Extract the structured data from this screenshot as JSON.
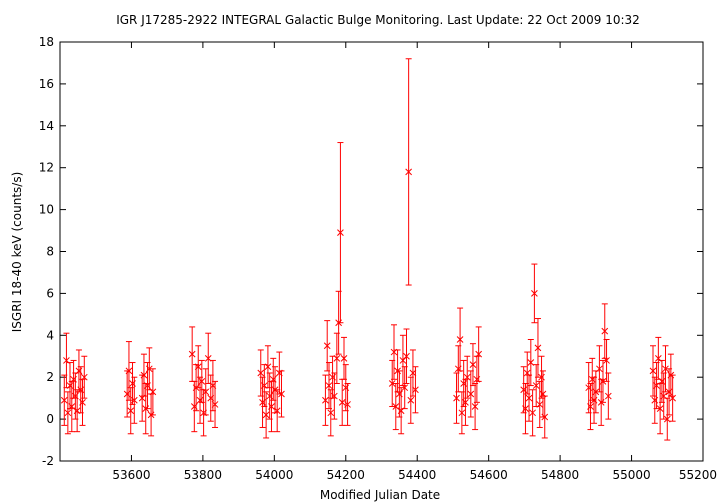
{
  "chart_data": {
    "type": "scatter",
    "title": "IGR J17285-2922   INTEGRAL Galactic Bulge Monitoring.  Last Update: 22 Oct 2009 10:32",
    "xlabel": "Modified Julian Date",
    "ylabel": "ISGRI 18-40 keV (counts/s)",
    "xlim": [
      53400,
      55200
    ],
    "ylim": [
      -2,
      18
    ],
    "xticks": [
      53600,
      53800,
      54000,
      54200,
      54400,
      54600,
      54800,
      55000,
      55200
    ],
    "yticks": [
      -2,
      0,
      2,
      4,
      6,
      8,
      10,
      12,
      14,
      16,
      18
    ],
    "grid": false,
    "legend": "none",
    "marker": "x with error bars",
    "color": "#ff0000",
    "series": [
      {
        "values": [
          {
            "x": 53412,
            "y": 0.9,
            "err": 1.2
          },
          {
            "x": 53418,
            "y": 2.8,
            "err": 1.3
          },
          {
            "x": 53422,
            "y": 0.3,
            "err": 1.0
          },
          {
            "x": 53428,
            "y": 1.6,
            "err": 1.1
          },
          {
            "x": 53433,
            "y": 0.6,
            "err": 1.2
          },
          {
            "x": 53438,
            "y": 1.9,
            "err": 0.9
          },
          {
            "x": 53443,
            "y": 1.1,
            "err": 1.1
          },
          {
            "x": 53448,
            "y": 0.4,
            "err": 1.0
          },
          {
            "x": 53453,
            "y": 2.3,
            "err": 1.0
          },
          {
            "x": 53458,
            "y": 1.4,
            "err": 1.1
          },
          {
            "x": 53463,
            "y": 0.8,
            "err": 1.1
          },
          {
            "x": 53468,
            "y": 2.0,
            "err": 1.0
          },
          {
            "x": 53588,
            "y": 1.2,
            "err": 1.1
          },
          {
            "x": 53593,
            "y": 2.3,
            "err": 1.4
          },
          {
            "x": 53598,
            "y": 0.4,
            "err": 1.1
          },
          {
            "x": 53603,
            "y": 1.7,
            "err": 1.0
          },
          {
            "x": 53608,
            "y": 0.9,
            "err": 1.1
          },
          {
            "x": 53630,
            "y": 1.0,
            "err": 1.1
          },
          {
            "x": 53635,
            "y": 2.1,
            "err": 1.0
          },
          {
            "x": 53640,
            "y": 0.5,
            "err": 1.2
          },
          {
            "x": 53645,
            "y": 1.6,
            "err": 1.1
          },
          {
            "x": 53650,
            "y": 2.4,
            "err": 1.0
          },
          {
            "x": 53655,
            "y": 0.2,
            "err": 1.0
          },
          {
            "x": 53660,
            "y": 1.3,
            "err": 1.1
          },
          {
            "x": 53770,
            "y": 3.1,
            "err": 1.3
          },
          {
            "x": 53776,
            "y": 0.6,
            "err": 1.2
          },
          {
            "x": 53781,
            "y": 1.5,
            "err": 1.1
          },
          {
            "x": 53787,
            "y": 2.5,
            "err": 1.0
          },
          {
            "x": 53792,
            "y": 0.9,
            "err": 1.1
          },
          {
            "x": 53797,
            "y": 1.8,
            "err": 1.0
          },
          {
            "x": 53802,
            "y": 0.3,
            "err": 1.1
          },
          {
            "x": 53808,
            "y": 1.3,
            "err": 1.1
          },
          {
            "x": 53815,
            "y": 2.9,
            "err": 1.2
          },
          {
            "x": 53822,
            "y": 1.0,
            "err": 1.1
          },
          {
            "x": 53828,
            "y": 1.6,
            "err": 1.2
          },
          {
            "x": 53834,
            "y": 0.7,
            "err": 1.1
          },
          {
            "x": 53962,
            "y": 2.2,
            "err": 1.1
          },
          {
            "x": 53967,
            "y": 0.8,
            "err": 1.2
          },
          {
            "x": 53972,
            "y": 1.6,
            "err": 1.0
          },
          {
            "x": 53977,
            "y": 0.2,
            "err": 1.1
          },
          {
            "x": 53982,
            "y": 2.5,
            "err": 1.0
          },
          {
            "x": 53987,
            "y": 1.1,
            "err": 1.1
          },
          {
            "x": 53992,
            "y": 0.6,
            "err": 1.2
          },
          {
            "x": 53997,
            "y": 1.9,
            "err": 1.0
          },
          {
            "x": 54002,
            "y": 1.4,
            "err": 1.1
          },
          {
            "x": 54008,
            "y": 0.4,
            "err": 1.0
          },
          {
            "x": 54014,
            "y": 2.2,
            "err": 1.0
          },
          {
            "x": 54020,
            "y": 1.2,
            "err": 1.1
          },
          {
            "x": 54143,
            "y": 0.9,
            "err": 1.2
          },
          {
            "x": 54148,
            "y": 3.5,
            "err": 1.2
          },
          {
            "x": 54153,
            "y": 1.6,
            "err": 1.1
          },
          {
            "x": 54158,
            "y": 0.3,
            "err": 1.1
          },
          {
            "x": 54163,
            "y": 2.0,
            "err": 1.0
          },
          {
            "x": 54168,
            "y": 1.1,
            "err": 1.1
          },
          {
            "x": 54175,
            "y": 2.9,
            "err": 1.2
          },
          {
            "x": 54180,
            "y": 4.6,
            "err": 1.5
          },
          {
            "x": 54185,
            "y": 8.9,
            "err": 4.3
          },
          {
            "x": 54190,
            "y": 0.8,
            "err": 1.1
          },
          {
            "x": 54195,
            "y": 2.9,
            "err": 1.0
          },
          {
            "x": 54200,
            "y": 1.5,
            "err": 1.1
          },
          {
            "x": 54205,
            "y": 0.7,
            "err": 1.0
          },
          {
            "x": 54330,
            "y": 1.7,
            "err": 1.1
          },
          {
            "x": 54335,
            "y": 3.2,
            "err": 1.3
          },
          {
            "x": 54340,
            "y": 0.6,
            "err": 1.1
          },
          {
            "x": 54345,
            "y": 2.3,
            "err": 1.0
          },
          {
            "x": 54350,
            "y": 1.2,
            "err": 1.1
          },
          {
            "x": 54355,
            "y": 0.4,
            "err": 1.1
          },
          {
            "x": 54360,
            "y": 2.8,
            "err": 1.2
          },
          {
            "x": 54365,
            "y": 1.5,
            "err": 1.0
          },
          {
            "x": 54370,
            "y": 3.0,
            "err": 1.3
          },
          {
            "x": 54376,
            "y": 11.8,
            "err": 5.4
          },
          {
            "x": 54382,
            "y": 0.9,
            "err": 1.1
          },
          {
            "x": 54388,
            "y": 2.2,
            "err": 1.1
          },
          {
            "x": 54395,
            "y": 1.4,
            "err": 1.1
          },
          {
            "x": 54510,
            "y": 1.0,
            "err": 1.2
          },
          {
            "x": 54515,
            "y": 2.4,
            "err": 1.1
          },
          {
            "x": 54520,
            "y": 3.8,
            "err": 1.5
          },
          {
            "x": 54525,
            "y": 0.3,
            "err": 1.0
          },
          {
            "x": 54530,
            "y": 1.7,
            "err": 1.1
          },
          {
            "x": 54535,
            "y": 0.8,
            "err": 1.1
          },
          {
            "x": 54540,
            "y": 2.0,
            "err": 1.0
          },
          {
            "x": 54550,
            "y": 1.2,
            "err": 1.1
          },
          {
            "x": 54556,
            "y": 2.6,
            "err": 1.0
          },
          {
            "x": 54562,
            "y": 0.6,
            "err": 1.1
          },
          {
            "x": 54567,
            "y": 1.9,
            "err": 1.1
          },
          {
            "x": 54572,
            "y": 3.1,
            "err": 1.3
          },
          {
            "x": 54698,
            "y": 1.4,
            "err": 1.1
          },
          {
            "x": 54703,
            "y": 0.5,
            "err": 1.2
          },
          {
            "x": 54708,
            "y": 2.2,
            "err": 1.0
          },
          {
            "x": 54713,
            "y": 1.0,
            "err": 1.1
          },
          {
            "x": 54718,
            "y": 2.7,
            "err": 1.1
          },
          {
            "x": 54723,
            "y": 0.3,
            "err": 1.1
          },
          {
            "x": 54728,
            "y": 6.0,
            "err": 1.4
          },
          {
            "x": 54733,
            "y": 1.6,
            "err": 1.0
          },
          {
            "x": 54738,
            "y": 3.4,
            "err": 1.4
          },
          {
            "x": 54743,
            "y": 0.7,
            "err": 1.1
          },
          {
            "x": 54748,
            "y": 2.0,
            "err": 1.0
          },
          {
            "x": 54752,
            "y": 1.2,
            "err": 1.1
          },
          {
            "x": 54757,
            "y": 0.1,
            "err": 1.0
          },
          {
            "x": 54880,
            "y": 1.5,
            "err": 1.2
          },
          {
            "x": 54885,
            "y": 0.6,
            "err": 1.1
          },
          {
            "x": 54890,
            "y": 1.9,
            "err": 1.0
          },
          {
            "x": 54895,
            "y": 0.9,
            "err": 1.1
          },
          {
            "x": 54900,
            "y": 1.3,
            "err": 1.0
          },
          {
            "x": 54910,
            "y": 2.4,
            "err": 1.1
          },
          {
            "x": 54915,
            "y": 0.8,
            "err": 1.1
          },
          {
            "x": 54920,
            "y": 1.8,
            "err": 1.0
          },
          {
            "x": 54925,
            "y": 4.2,
            "err": 1.3
          },
          {
            "x": 54930,
            "y": 2.8,
            "err": 1.0
          },
          {
            "x": 54935,
            "y": 1.1,
            "err": 1.1
          },
          {
            "x": 55060,
            "y": 2.3,
            "err": 1.2
          },
          {
            "x": 55065,
            "y": 0.9,
            "err": 1.1
          },
          {
            "x": 55070,
            "y": 1.6,
            "err": 1.1
          },
          {
            "x": 55075,
            "y": 2.9,
            "err": 1.0
          },
          {
            "x": 55080,
            "y": 0.5,
            "err": 1.2
          },
          {
            "x": 55085,
            "y": 1.8,
            "err": 1.0
          },
          {
            "x": 55090,
            "y": 1.1,
            "err": 1.1
          },
          {
            "x": 55095,
            "y": 2.4,
            "err": 1.1
          },
          {
            "x": 55100,
            "y": 0.0,
            "err": 1.0
          },
          {
            "x": 55105,
            "y": 1.3,
            "err": 1.1
          },
          {
            "x": 55110,
            "y": 2.1,
            "err": 1.0
          },
          {
            "x": 55115,
            "y": 1.0,
            "err": 1.1
          }
        ]
      }
    ]
  }
}
